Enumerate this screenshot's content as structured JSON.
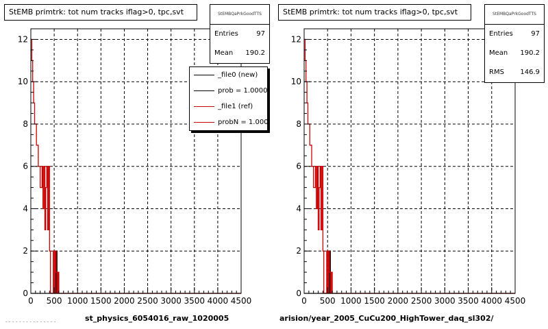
{
  "left_panel": {
    "title": "StEMB primtrk: tot num tracks iflag>0, tpc,svt",
    "stats": {
      "title": "StEMBQaPrkGoodTTS",
      "rows": [
        {
          "label": "Entries",
          "value": "97"
        },
        {
          "label": "Mean",
          "value": "190.2"
        }
      ]
    },
    "legend": [
      {
        "label": "_file0 (new)",
        "color": "#000000"
      },
      {
        "label": "prob = 1.000000",
        "color": "#000000"
      },
      {
        "label": "_file1 (ref)",
        "color": "#cc0000"
      },
      {
        "label": "probN = 1.000000",
        "color": "#cc0000"
      }
    ],
    "xtitle": "st_physics_6054016_raw_1020005"
  },
  "right_panel": {
    "title": "StEMB primtrk: tot num tracks iflag>0, tpc,svt",
    "stats": {
      "title": "StEMBQaPrkGoodTTS",
      "rows": [
        {
          "label": "Entries",
          "value": "97"
        },
        {
          "label": "Mean",
          "value": "190.2"
        },
        {
          "label": "RMS",
          "value": "146.9"
        }
      ]
    },
    "xtitle": "arision/year_2005_CuCu200_HighTower_daq_sl302/"
  },
  "footnote": "- - - -  - -  - - - - - - - - -",
  "chart_data": [
    {
      "type": "line",
      "xlim": [
        0,
        4500
      ],
      "ylim": [
        0,
        12.5
      ],
      "xticks": [
        0,
        500,
        1000,
        1500,
        2000,
        2500,
        3000,
        3500,
        4000,
        4500
      ],
      "yticks": [
        0,
        2,
        4,
        6,
        8,
        10,
        12
      ],
      "grid": true,
      "series": [
        {
          "name": "_file0 (new)",
          "color": "#000000",
          "x": [
            0,
            540,
            540,
            560,
            560,
            4500
          ],
          "y": [
            0,
            0,
            2,
            2,
            0,
            0
          ]
        },
        {
          "name": "_file1 (ref)",
          "color": "#cc0000",
          "x": [
            0,
            20,
            20,
            40,
            40,
            60,
            60,
            80,
            80,
            120,
            120,
            160,
            160,
            200,
            200,
            240,
            240,
            260,
            260,
            280,
            280,
            300,
            300,
            320,
            320,
            340,
            340,
            360,
            360,
            380,
            380,
            400,
            400,
            420,
            420,
            440,
            440,
            480,
            480,
            500,
            500,
            520,
            520,
            540,
            540,
            560,
            560,
            580,
            580,
            600,
            600,
            4500
          ],
          "y": [
            12,
            12,
            11,
            11,
            10,
            10,
            9,
            9,
            8,
            8,
            7,
            7,
            6,
            6,
            5,
            5,
            6,
            6,
            4,
            4,
            6,
            6,
            3,
            3,
            5,
            5,
            6,
            6,
            3,
            3,
            6,
            6,
            2,
            2,
            0,
            0,
            0,
            0,
            2,
            2,
            0,
            0,
            2,
            2,
            1,
            1,
            0,
            0,
            1,
            1,
            0,
            0
          ]
        }
      ]
    },
    {
      "type": "line",
      "xlim": [
        0,
        4500
      ],
      "ylim": [
        0,
        12.5
      ],
      "xticks": [
        0,
        500,
        1000,
        1500,
        2000,
        2500,
        3000,
        3500,
        4000,
        4500
      ],
      "yticks": [
        0,
        2,
        4,
        6,
        8,
        10,
        12
      ],
      "grid": true,
      "series": [
        {
          "name": "_file0 (new)",
          "color": "#000000",
          "x": [
            0,
            540,
            540,
            560,
            560,
            4500
          ],
          "y": [
            0,
            0,
            2,
            2,
            0,
            0
          ]
        },
        {
          "name": "_file1 (ref)",
          "color": "#cc0000",
          "x": [
            0,
            20,
            20,
            40,
            40,
            60,
            60,
            80,
            80,
            120,
            120,
            160,
            160,
            200,
            200,
            240,
            240,
            260,
            260,
            280,
            280,
            300,
            300,
            320,
            320,
            340,
            340,
            360,
            360,
            380,
            380,
            400,
            400,
            420,
            420,
            440,
            440,
            480,
            480,
            500,
            500,
            520,
            520,
            540,
            540,
            560,
            560,
            580,
            580,
            600,
            600,
            4500
          ],
          "y": [
            12,
            12,
            11,
            11,
            10,
            10,
            9,
            9,
            8,
            8,
            7,
            7,
            6,
            6,
            5,
            5,
            6,
            6,
            4,
            4,
            6,
            6,
            3,
            3,
            5,
            5,
            6,
            6,
            3,
            3,
            6,
            6,
            2,
            2,
            0,
            0,
            0,
            0,
            2,
            2,
            0,
            0,
            2,
            2,
            1,
            1,
            0,
            0,
            1,
            1,
            0,
            0
          ]
        }
      ]
    }
  ]
}
